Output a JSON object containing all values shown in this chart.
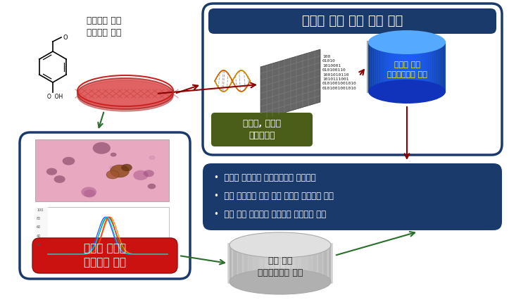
{
  "top_box_title": "오믹스 기술 기반 독성 분석",
  "omics_db_text": "오믹스 기반\n데이터베이스 구축",
  "omics_label_text": "유전체, 대사체\n프로파일링",
  "omics_label_bg": "#4a5e1a",
  "bullet_texts": [
    "통합적 분석기반 데이터베이스 최종구축",
    "인간 줄기세포 기반 세포 독성의 시스템적 분석",
    "예측 동정 분자지표 발굴기반 네트워크 확립"
  ],
  "stem_cell_text": "줄기세포 유래\n분화세포 활용",
  "trad_label_text": "전통적 개념의\n독성학적 분석",
  "trad_label_bg": "#cc1111",
  "general_db_text": "일반 독성\n데이터베이스 구축",
  "navy": "#1a3a6b",
  "dark_red": "#8b0000",
  "green": "#2a6e2a",
  "bg_color": "#ffffff",
  "binary": "100\n01010\n1010001\n010100110\n1001010110\n1010111001\n0101001001010\n0101001001010"
}
